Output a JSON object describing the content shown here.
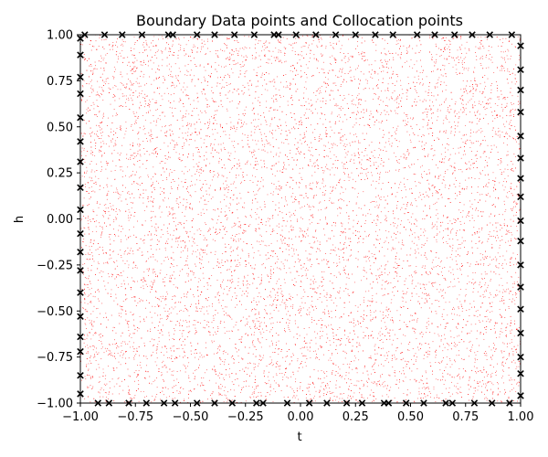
{
  "chart_data": {
    "type": "scatter",
    "title": "Boundary Data points and Collocation points",
    "xlabel": "t",
    "ylabel": "h",
    "xlim": [
      -1.0,
      1.0
    ],
    "ylim": [
      -1.0,
      1.0
    ],
    "xticks": [
      -1.0,
      -0.75,
      -0.5,
      -0.25,
      0.0,
      0.25,
      0.5,
      0.75,
      1.0
    ],
    "yticks": [
      -1.0,
      -0.75,
      -0.5,
      -0.25,
      0.0,
      0.25,
      0.5,
      0.75,
      1.0
    ],
    "xtick_labels": [
      "−1.00",
      "−0.75",
      "−0.50",
      "−0.25",
      "0.00",
      "0.25",
      "0.50",
      "0.75",
      "1.00"
    ],
    "ytick_labels": [
      "−1.00",
      "−0.75",
      "−0.50",
      "−0.25",
      "0.00",
      "0.25",
      "0.50",
      "0.75",
      "1.00"
    ],
    "grid": false,
    "series": [
      {
        "marker": "x",
        "color": "#000000",
        "points": [
          [
            -1.0,
            -0.95
          ],
          [
            -1.0,
            -0.85
          ],
          [
            -1.0,
            -0.72
          ],
          [
            -1.0,
            -0.64
          ],
          [
            -1.0,
            -0.53
          ],
          [
            -1.0,
            -0.4
          ],
          [
            -1.0,
            -0.28
          ],
          [
            -1.0,
            -0.18
          ],
          [
            -1.0,
            -0.08
          ],
          [
            -1.0,
            0.05
          ],
          [
            -1.0,
            0.17
          ],
          [
            -1.0,
            0.31
          ],
          [
            -1.0,
            0.42
          ],
          [
            -1.0,
            0.55
          ],
          [
            -1.0,
            0.68
          ],
          [
            -1.0,
            0.77
          ],
          [
            -1.0,
            0.89
          ],
          [
            -1.0,
            0.98
          ],
          [
            1.0,
            -0.96
          ],
          [
            1.0,
            -0.84
          ],
          [
            1.0,
            -0.75
          ],
          [
            1.0,
            -0.62
          ],
          [
            1.0,
            -0.49
          ],
          [
            1.0,
            -0.37
          ],
          [
            1.0,
            -0.25
          ],
          [
            1.0,
            -0.12
          ],
          [
            1.0,
            -0.01
          ],
          [
            1.0,
            0.12
          ],
          [
            1.0,
            0.22
          ],
          [
            1.0,
            0.33
          ],
          [
            1.0,
            0.45
          ],
          [
            1.0,
            0.58
          ],
          [
            1.0,
            0.7
          ],
          [
            1.0,
            0.81
          ],
          [
            1.0,
            0.94
          ],
          [
            -0.92,
            -1.0
          ],
          [
            -0.87,
            -1.0
          ],
          [
            -0.78,
            -1.0
          ],
          [
            -0.7,
            -1.0
          ],
          [
            -0.62,
            -1.0
          ],
          [
            -0.57,
            -1.0
          ],
          [
            -0.47,
            -1.0
          ],
          [
            -0.39,
            -1.0
          ],
          [
            -0.31,
            -1.0
          ],
          [
            -0.2,
            -1.0
          ],
          [
            -0.17,
            -1.0
          ],
          [
            -0.06,
            -1.0
          ],
          [
            0.04,
            -1.0
          ],
          [
            0.12,
            -1.0
          ],
          [
            0.21,
            -1.0
          ],
          [
            0.28,
            -1.0
          ],
          [
            0.38,
            -1.0
          ],
          [
            0.4,
            -1.0
          ],
          [
            0.48,
            -1.0
          ],
          [
            0.56,
            -1.0
          ],
          [
            0.66,
            -1.0
          ],
          [
            0.69,
            -1.0
          ],
          [
            0.79,
            -1.0
          ],
          [
            0.87,
            -1.0
          ],
          [
            0.95,
            -1.0
          ],
          [
            -0.98,
            1.0
          ],
          [
            -0.89,
            1.0
          ],
          [
            -0.81,
            1.0
          ],
          [
            -0.72,
            1.0
          ],
          [
            -0.6,
            1.0
          ],
          [
            -0.58,
            1.0
          ],
          [
            -0.47,
            1.0
          ],
          [
            -0.39,
            1.0
          ],
          [
            -0.3,
            1.0
          ],
          [
            -0.21,
            1.0
          ],
          [
            -0.12,
            1.0
          ],
          [
            -0.1,
            1.0
          ],
          [
            -0.02,
            1.0
          ],
          [
            0.07,
            1.0
          ],
          [
            0.16,
            1.0
          ],
          [
            0.25,
            1.0
          ],
          [
            0.34,
            1.0
          ],
          [
            0.42,
            1.0
          ],
          [
            0.53,
            1.0
          ],
          [
            0.61,
            1.0
          ],
          [
            0.7,
            1.0
          ],
          [
            0.78,
            1.0
          ],
          [
            0.86,
            1.0
          ],
          [
            0.96,
            1.0
          ]
        ]
      },
      {
        "marker": ".",
        "color": "#ff0000",
        "distribution": "uniform",
        "count": 10000,
        "x_range": [
          -1.0,
          1.0
        ],
        "y_range": [
          -1.0,
          1.0
        ]
      }
    ]
  }
}
